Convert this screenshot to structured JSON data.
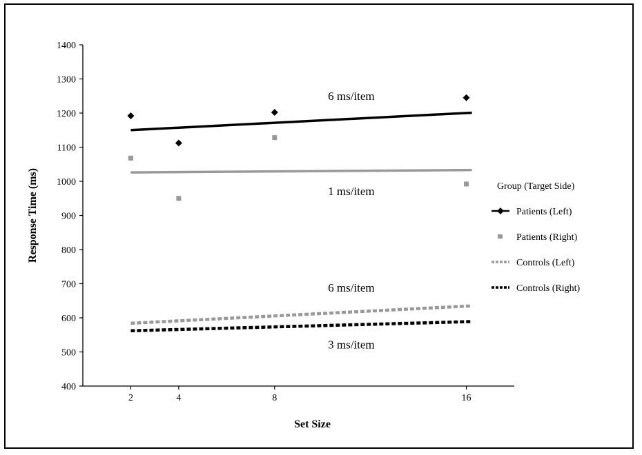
{
  "chart_data": {
    "type": "scatter",
    "xlabel": "Set Size",
    "ylabel": "Response Time (ms)",
    "x_ticks": [
      2,
      4,
      8,
      16
    ],
    "xlim": [
      0,
      18
    ],
    "ylim": [
      400,
      1400
    ],
    "y_ticks": [
      400,
      500,
      600,
      700,
      800,
      900,
      1000,
      1100,
      1200,
      1300,
      1400
    ],
    "legend": {
      "title": "Group (Target Side)",
      "position": "right"
    },
    "series": [
      {
        "name": "Patients (Left)",
        "color": "#000000",
        "marker": "diamond",
        "line_style": "solid",
        "x": [
          2,
          4,
          8,
          16
        ],
        "y": [
          1192,
          1112,
          1202,
          1245
        ],
        "trend": [
          1150,
          1201
        ]
      },
      {
        "name": "Patients (Right)",
        "color": "#999999",
        "marker": "square",
        "line_style": "solid",
        "x": [
          2,
          4,
          8,
          16
        ],
        "y": [
          1068,
          950,
          1128,
          992
        ],
        "trend": [
          1026,
          1033
        ]
      },
      {
        "name": "Controls (Left)",
        "color": "#999999",
        "marker": "none",
        "line_style": "dotted",
        "x": [],
        "y": [],
        "trend": [
          584,
          635
        ]
      },
      {
        "name": "Controls (Right)",
        "color": "#000000",
        "marker": "none",
        "line_style": "dotted",
        "x": [],
        "y": [],
        "trend": [
          562,
          589
        ]
      }
    ],
    "annotations": [
      {
        "text": "6 ms/item",
        "x": 11.2,
        "y": 1238
      },
      {
        "text": "1 ms/item",
        "x": 11.2,
        "y": 960
      },
      {
        "text": "6 ms/item",
        "x": 11.2,
        "y": 677
      },
      {
        "text": "3 ms/item",
        "x": 11.2,
        "y": 510
      }
    ]
  }
}
